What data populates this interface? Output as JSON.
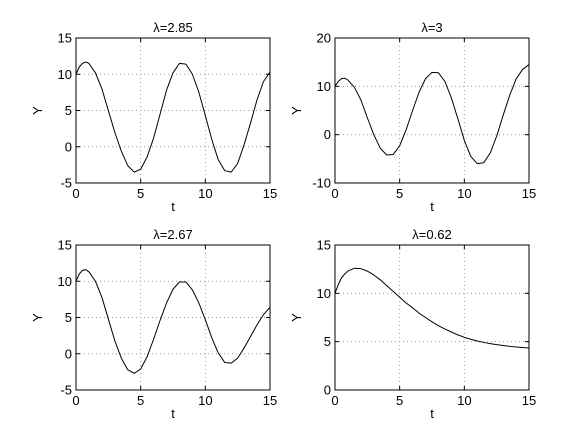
{
  "chart_data": [
    {
      "type": "line",
      "title": "λ=2.85",
      "xlabel": "t",
      "ylabel": "Y",
      "xlim": [
        0,
        15
      ],
      "ylim": [
        -5,
        15
      ],
      "xticks": [
        0,
        5,
        10,
        15
      ],
      "yticks": [
        -5,
        0,
        5,
        10,
        15
      ],
      "grid": true,
      "x": [
        0,
        0.25,
        0.5,
        0.75,
        1,
        1.5,
        2,
        2.5,
        3,
        3.5,
        4,
        4.5,
        5,
        5.5,
        6,
        6.5,
        7,
        7.5,
        8,
        8.5,
        9,
        9.5,
        10,
        10.5,
        11,
        11.5,
        12,
        12.5,
        13,
        13.5,
        14,
        14.5,
        15
      ],
      "y": [
        10,
        11,
        11.5,
        11.7,
        11.5,
        10.2,
        8,
        5,
        2,
        -0.6,
        -2.6,
        -3.5,
        -3.1,
        -1.4,
        1.2,
        4.5,
        7.8,
        10.2,
        11.5,
        11.4,
        10,
        7.5,
        4.3,
        1,
        -1.8,
        -3.3,
        -3.5,
        -2.3,
        0.3,
        3.3,
        6.5,
        9,
        10.3
      ]
    },
    {
      "type": "line",
      "title": "λ=3",
      "xlabel": "t",
      "ylabel": "Y",
      "xlim": [
        0,
        15
      ],
      "ylim": [
        -10,
        20
      ],
      "xticks": [
        0,
        5,
        10,
        15
      ],
      "yticks": [
        -10,
        0,
        10,
        20
      ],
      "grid": true,
      "x": [
        0,
        0.25,
        0.5,
        0.75,
        1,
        1.5,
        2,
        2.5,
        3,
        3.5,
        4,
        4.5,
        5,
        5.5,
        6,
        6.5,
        7,
        7.5,
        8,
        8.5,
        9,
        9.5,
        10,
        10.5,
        11,
        11.5,
        12,
        12.5,
        13,
        13.5,
        14,
        14.5,
        15
      ],
      "y": [
        10,
        11,
        11.6,
        11.7,
        11.3,
        9.8,
        7.2,
        3.5,
        0,
        -2.8,
        -4.2,
        -4.1,
        -2.3,
        1,
        5,
        8.8,
        11.6,
        12.9,
        12.8,
        11,
        7.6,
        3.3,
        -1.2,
        -4.5,
        -6,
        -5.8,
        -3.8,
        -0.3,
        4,
        8.1,
        11.5,
        13.5,
        14.5
      ]
    },
    {
      "type": "line",
      "title": "λ=2.67",
      "xlabel": "t",
      "ylabel": "Y",
      "xlim": [
        0,
        15
      ],
      "ylim": [
        -5,
        15
      ],
      "xticks": [
        0,
        5,
        10,
        15
      ],
      "yticks": [
        -5,
        0,
        5,
        10,
        15
      ],
      "grid": true,
      "x": [
        0,
        0.25,
        0.5,
        0.75,
        1,
        1.5,
        2,
        2.5,
        3,
        3.5,
        4,
        4.5,
        5,
        5.5,
        6,
        6.5,
        7,
        7.5,
        8,
        8.5,
        9,
        9.5,
        10,
        10.5,
        11,
        11.5,
        12,
        12.5,
        13,
        13.5,
        14,
        14.5,
        15
      ],
      "y": [
        10,
        11,
        11.5,
        11.6,
        11.3,
        10,
        7.8,
        4.8,
        1.8,
        -0.6,
        -2.2,
        -2.7,
        -2.1,
        -0.4,
        2,
        4.6,
        7,
        8.9,
        9.9,
        9.9,
        8.8,
        7,
        4.7,
        2.2,
        0.1,
        -1.2,
        -1.3,
        -0.6,
        0.8,
        2.4,
        4,
        5.4,
        6.4
      ]
    },
    {
      "type": "line",
      "title": "λ=0.62",
      "xlabel": "t",
      "ylabel": "Y",
      "xlim": [
        0,
        15
      ],
      "ylim": [
        0,
        15
      ],
      "xticks": [
        0,
        5,
        10,
        15
      ],
      "yticks": [
        0,
        5,
        10,
        15
      ],
      "grid": true,
      "x": [
        0,
        0.25,
        0.5,
        0.75,
        1,
        1.5,
        2,
        2.5,
        3,
        3.5,
        4,
        4.5,
        5,
        5.5,
        6,
        6.5,
        7,
        7.5,
        8,
        8.5,
        9,
        9.5,
        10,
        10.5,
        11,
        11.5,
        12,
        12.5,
        13,
        13.5,
        14,
        14.5,
        15
      ],
      "y": [
        10,
        10.9,
        11.6,
        12,
        12.3,
        12.6,
        12.55,
        12.3,
        11.9,
        11.4,
        10.8,
        10.2,
        9.6,
        9,
        8.5,
        7.95,
        7.5,
        7.05,
        6.65,
        6.3,
        6.0,
        5.7,
        5.45,
        5.25,
        5.07,
        4.92,
        4.8,
        4.7,
        4.6,
        4.52,
        4.45,
        4.4,
        4.35
      ]
    }
  ]
}
